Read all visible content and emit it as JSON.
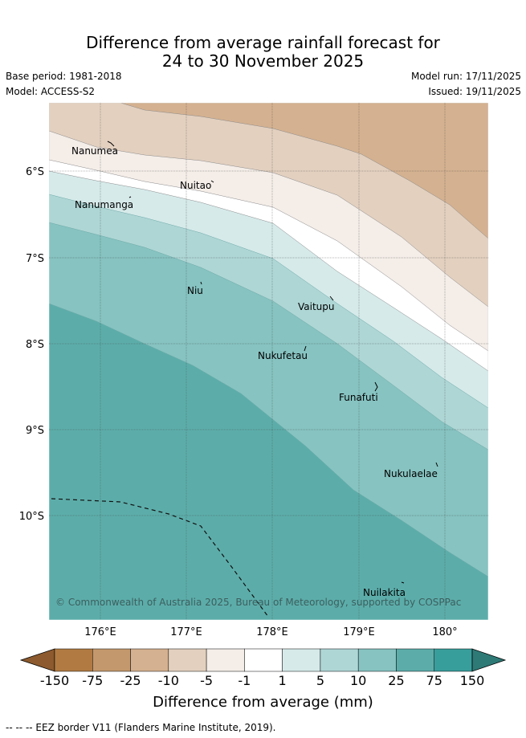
{
  "title": {
    "line1": "Difference from average rainfall forecast for",
    "line2": "24 to 30 November 2025"
  },
  "meta": {
    "base_period": "Base period: 1981-2018",
    "model": "Model: ACCESS-S2",
    "model_run": "Model run: 17/11/2025",
    "issued": "Issued: 19/11/2025"
  },
  "map": {
    "lon_ticks": [
      "176°E",
      "177°E",
      "178°E",
      "179°E",
      "180°"
    ],
    "lat_ticks": [
      "6°S",
      "7°S",
      "8°S",
      "9°S",
      "10°S"
    ],
    "islands": [
      "Nanumea",
      "Nuitao",
      "Nanumanga",
      "Niu",
      "Vaitupu",
      "Nukufetau",
      "Funafuti",
      "Nukulaelae",
      "Nuilakita"
    ],
    "copyright": "© Commonwealth of Australia 2025, Bureau of Meteorology, supported by COSPPac"
  },
  "legend": {
    "tick_labels": [
      "-150",
      "-75",
      "-25",
      "-10",
      "-5",
      "-1",
      "1",
      "5",
      "10",
      "25",
      "75",
      "150"
    ],
    "colors": [
      "#8c5a2e",
      "#b07a42",
      "#c4986d",
      "#d4b190",
      "#e3d0bf",
      "#f4ede8",
      "#ffffff",
      "#d6eaea",
      "#aed6d5",
      "#86c3c1",
      "#5cadaa",
      "#389e9b",
      "#2e7a77"
    ],
    "label": "Difference from average (mm)"
  },
  "footer": "-- -- -- EEZ border V11 (Flanders Marine Institute, 2019)."
}
